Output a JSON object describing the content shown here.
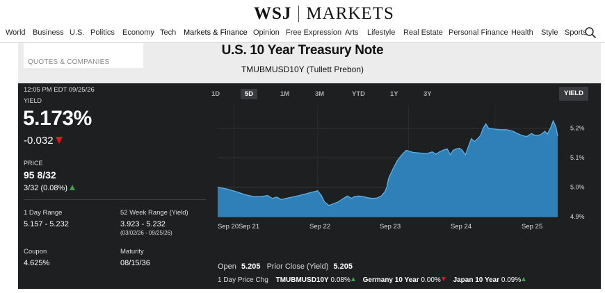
{
  "header": {
    "brand": "WSJ",
    "section": "MARKETS"
  },
  "nav": {
    "items": [
      "World",
      "Business",
      "U.S.",
      "Politics",
      "Economy",
      "Tech",
      "Markets & Finance",
      "Opinion",
      "Free Expression",
      "Arts",
      "Lifestyle",
      "Real Estate",
      "Personal Finance",
      "Health",
      "Style",
      "Sports"
    ],
    "active": "Markets & Finance"
  },
  "quotes_label": "QUOTES & COMPANIES",
  "security": {
    "title": "U.S. 10 Year Treasury Note",
    "symbol": "TMUBMUSD10Y",
    "source": "(Tullett Prebon)"
  },
  "quote": {
    "timestamp": "12:05 PM EDT 09/25/26",
    "yield_label": "YIELD",
    "yield": "5.173%",
    "change": "-0.032",
    "price_label": "PRICE",
    "price": "95 8/32",
    "price_change": "3/32 (0.08%)",
    "day_range_label": "1 Day Range",
    "day_range": "5.157 - 5.232",
    "week52_label": "52 Week Range (Yield)",
    "week52": "3.923 - 5.232",
    "week52_dates": "(03/02/26 - 09/25/26)",
    "coupon_label": "Coupon",
    "coupon": "4.625%",
    "maturity_label": "Maturity",
    "maturity": "08/15/36"
  },
  "tabs": [
    "1D",
    "5D",
    "1M",
    "3M",
    "YTD",
    "1Y",
    "3Y"
  ],
  "active_tab": "5D",
  "yield_button": "YIELD",
  "bottom": {
    "open_label": "Open",
    "open": "5.205",
    "prior_label": "Prior Close (Yield)",
    "prior": "5.205",
    "chg_label": "1 Day Price Chg",
    "comparisons": [
      {
        "name": "TMUBMUSD10Y",
        "value": "0.08%",
        "direction": "up"
      },
      {
        "name": "Germany 10 Year",
        "value": "0.00%",
        "direction": "down"
      },
      {
        "name": "Japan 10 Year",
        "value": "0.09%",
        "direction": "up"
      }
    ]
  },
  "colors": {
    "panel": "#1e1f21",
    "area": "#2f7fb8",
    "line": "#5fb1e3",
    "up": "#3ba34d",
    "down": "#e0181f"
  },
  "chart_data": {
    "type": "area",
    "xlabel": "",
    "ylabel": "",
    "x_ticks": [
      "Sep 20",
      "Sep 21",
      "Sep 22",
      "Sep 23",
      "Sep 24",
      "Sep 25"
    ],
    "y_ticks": [
      "5.2%",
      "5.1%",
      "5.0%",
      "4.9%"
    ],
    "ylim": [
      4.9,
      5.23
    ],
    "series": [
      {
        "values": [
          [
            0.0,
            5.0
          ],
          [
            0.2,
            4.994
          ],
          [
            0.4,
            4.985
          ],
          [
            0.6,
            4.975
          ],
          [
            0.8,
            4.968
          ],
          [
            0.95,
            4.968
          ],
          [
            1.1,
            4.972
          ],
          [
            1.2,
            4.962
          ],
          [
            1.3,
            4.966
          ],
          [
            1.4,
            4.958
          ],
          [
            1.5,
            4.962
          ],
          [
            1.6,
            4.965
          ],
          [
            1.8,
            4.972
          ],
          [
            2.0,
            4.98
          ],
          [
            2.2,
            4.988
          ],
          [
            2.28,
            4.972
          ],
          [
            2.35,
            4.95
          ],
          [
            2.45,
            4.938
          ],
          [
            2.55,
            4.944
          ],
          [
            2.65,
            4.95
          ],
          [
            2.75,
            4.96
          ],
          [
            2.85,
            4.97
          ],
          [
            2.95,
            4.962
          ],
          [
            3.0,
            4.968
          ],
          [
            3.1,
            4.97
          ],
          [
            3.2,
            4.968
          ],
          [
            3.3,
            4.964
          ],
          [
            3.4,
            4.962
          ],
          [
            3.5,
            4.963
          ],
          [
            3.6,
            4.97
          ],
          [
            3.68,
            4.985
          ],
          [
            3.72,
            5.0
          ],
          [
            3.76,
            5.03
          ],
          [
            3.85,
            5.06
          ],
          [
            3.95,
            5.09
          ],
          [
            4.05,
            5.11
          ],
          [
            4.15,
            5.125
          ],
          [
            4.3,
            5.118
          ],
          [
            4.45,
            5.116
          ],
          [
            4.6,
            5.114
          ],
          [
            4.72,
            5.12
          ],
          [
            4.8,
            5.112
          ],
          [
            4.88,
            5.12
          ],
          [
            4.95,
            5.125
          ],
          [
            5.05,
            5.13
          ],
          [
            5.12,
            5.11
          ],
          [
            5.18,
            5.125
          ],
          [
            5.25,
            5.13
          ],
          [
            5.32,
            5.132
          ],
          [
            5.38,
            5.125
          ],
          [
            5.45,
            5.11
          ],
          [
            5.52,
            5.14
          ],
          [
            5.58,
            5.165
          ],
          [
            5.65,
            5.155
          ],
          [
            5.72,
            5.165
          ],
          [
            5.78,
            5.175
          ],
          [
            5.84,
            5.2
          ],
          [
            5.9,
            5.215
          ],
          [
            5.96,
            5.2
          ],
          [
            6.05,
            5.198
          ],
          [
            6.2,
            5.195
          ],
          [
            6.35,
            5.195
          ],
          [
            6.5,
            5.19
          ],
          [
            6.6,
            5.182
          ],
          [
            6.7,
            5.175
          ],
          [
            6.8,
            5.172
          ],
          [
            6.9,
            5.182
          ],
          [
            7.0,
            5.175
          ],
          [
            7.1,
            5.178
          ],
          [
            7.2,
            5.19
          ],
          [
            7.25,
            5.18
          ],
          [
            7.32,
            5.2
          ],
          [
            7.38,
            5.225
          ],
          [
            7.44,
            5.205
          ],
          [
            7.48,
            5.173
          ]
        ]
      }
    ]
  }
}
